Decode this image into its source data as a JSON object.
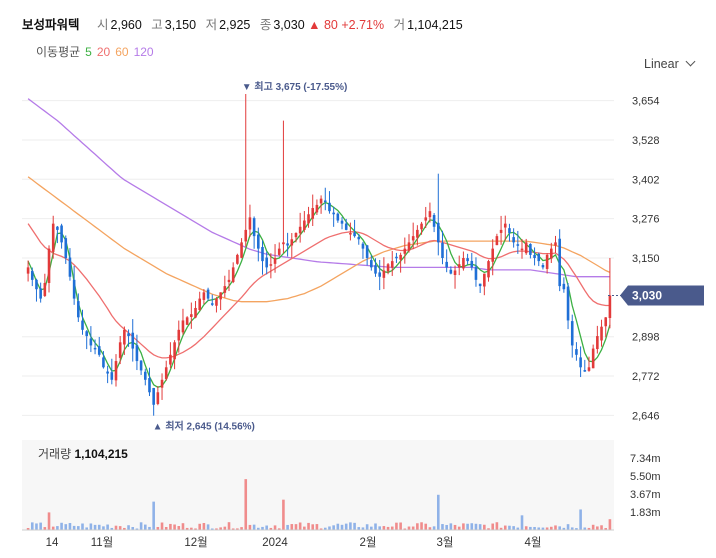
{
  "header": {
    "name": "보성파워텍",
    "open_label": "시",
    "open": "2,960",
    "high_label": "고",
    "high": "3,150",
    "low_label": "저",
    "low": "2,925",
    "close_label": "종",
    "close": "3,030",
    "change": "▲ 80",
    "change_pct": "+2.71%",
    "volume_label": "거",
    "volume": "1,104,215"
  },
  "ma_legend": {
    "label": "이동평균",
    "periods": [
      "5",
      "20",
      "60",
      "120"
    ]
  },
  "scale_selector": {
    "label": "Linear"
  },
  "colors": {
    "up": "#e23a3a",
    "down": "#1f6fd6",
    "ma5": "#3cb043",
    "ma20": "#ef6f6f",
    "ma60": "#f4a460",
    "ma120": "#b57be8",
    "price_tag": "#4a5a8c",
    "volume": "#f08c8c",
    "volume_down": "#8fb2e8"
  },
  "chart_data": {
    "type": "candlestick",
    "y_ticks": [
      "3,654",
      "3,528",
      "3,402",
      "3,276",
      "3,150",
      "2,898",
      "2,772",
      "2,646"
    ],
    "ylim": [
      2580,
      3720
    ],
    "x_ticks": [
      "14",
      "11월",
      "12월",
      "2024",
      "2월",
      "3월",
      "4월"
    ],
    "current_price": "3,030",
    "max_annotation": "▼ 최고 3,675 (-17.55%)",
    "min_annotation": "▲ 최저 2,645 (14.56%)",
    "volume": {
      "label": "거래량",
      "value": "1,104,215",
      "y_ticks": [
        "7.34m",
        "5.50m",
        "3.67m",
        "1.83m"
      ],
      "ylim": [
        0,
        9200000
      ]
    },
    "closes": [
      3120,
      3080,
      3050,
      3020,
      3070,
      3180,
      3260,
      3240,
      3200,
      3150,
      3090,
      3020,
      2960,
      2920,
      2900,
      2870,
      2860,
      2840,
      2800,
      2780,
      2760,
      2820,
      2880,
      2920,
      2900,
      2860,
      2820,
      2790,
      2760,
      2720,
      2680,
      2720,
      2760,
      2800,
      2840,
      2880,
      2920,
      2950,
      2960,
      2970,
      2990,
      3020,
      3040,
      3020,
      3000,
      3020,
      3040,
      3060,
      3080,
      3120,
      3160,
      3200,
      3240,
      3280,
      3220,
      3180,
      3140,
      3120,
      3130,
      3150,
      3180,
      3200,
      3190,
      3210,
      3230,
      3250,
      3270,
      3290,
      3310,
      3320,
      3340,
      3330,
      3300,
      3290,
      3270,
      3260,
      3240,
      3230,
      3220,
      3210,
      3180,
      3150,
      3120,
      3100,
      3090,
      3110,
      3130,
      3140,
      3150,
      3160,
      3180,
      3200,
      3220,
      3240,
      3260,
      3280,
      3300,
      3250,
      3200,
      3150,
      3120,
      3100,
      3110,
      3130,
      3150,
      3140,
      3120,
      3080,
      3060,
      3100,
      3140,
      3180,
      3220,
      3240,
      3260,
      3230,
      3200,
      3190,
      3180,
      3200,
      3160,
      3150,
      3140,
      3120,
      3160,
      3180,
      3200,
      3060,
      3050,
      2950,
      2870,
      2840,
      2800,
      2790,
      2800,
      2860,
      2900,
      2930,
      2960,
      3030
    ],
    "ma5": [
      3140,
      3110,
      3075,
      3048,
      3052,
      3104,
      3165,
      3228,
      3230,
      3206,
      3148,
      3074,
      3006,
      2960,
      2930,
      2898,
      2878,
      2862,
      2840,
      2812,
      2788,
      2790,
      2820,
      2856,
      2876,
      2880,
      2872,
      2846,
      2806,
      2770,
      2744,
      2736,
      2740,
      2760,
      2792,
      2828,
      2868,
      2902,
      2928,
      2948,
      2962,
      2980,
      3000,
      3014,
      3016,
      3020,
      3030,
      3044,
      3060,
      3080,
      3108,
      3140,
      3180,
      3222,
      3236,
      3232,
      3208,
      3172,
      3154,
      3146,
      3150,
      3164,
      3178,
      3196,
      3206,
      3224,
      3242,
      3262,
      3282,
      3302,
      3318,
      3328,
      3322,
      3312,
      3302,
      3286,
      3266,
      3250,
      3236,
      3224,
      3208,
      3186,
      3160,
      3136,
      3116,
      3106,
      3104,
      3110,
      3124,
      3140,
      3156,
      3174,
      3192,
      3212,
      3232,
      3252,
      3272,
      3270,
      3256,
      3232,
      3204,
      3164,
      3136,
      3122,
      3122,
      3128,
      3130,
      3126,
      3112,
      3104,
      3108,
      3124,
      3152,
      3180,
      3210,
      3230,
      3232,
      3222,
      3206,
      3194,
      3182,
      3166,
      3156,
      3142,
      3144,
      3150,
      3160,
      3130,
      3112,
      3062,
      2998,
      2950,
      2898,
      2846,
      2820,
      2818,
      2832,
      2856,
      2890,
      2936
    ],
    "ma20": [
      3260,
      3240,
      3220,
      3200,
      3185,
      3175,
      3165,
      3160,
      3155,
      3148,
      3140,
      3128,
      3114,
      3098,
      3082,
      3064,
      3046,
      3028,
      3008,
      2988,
      2966,
      2948,
      2934,
      2922,
      2910,
      2898,
      2886,
      2874,
      2862,
      2850,
      2840,
      2834,
      2830,
      2830,
      2832,
      2836,
      2842,
      2848,
      2856,
      2864,
      2874,
      2886,
      2898,
      2912,
      2926,
      2940,
      2954,
      2968,
      2982,
      2996,
      3010,
      3024,
      3040,
      3056,
      3070,
      3082,
      3092,
      3100,
      3108,
      3116,
      3124,
      3132,
      3140,
      3148,
      3156,
      3164,
      3172,
      3180,
      3188,
      3196,
      3204,
      3212,
      3218,
      3222,
      3226,
      3230,
      3232,
      3234,
      3234,
      3232,
      3228,
      3222,
      3214,
      3206,
      3198,
      3190,
      3184,
      3180,
      3176,
      3174,
      3174,
      3176,
      3180,
      3186,
      3192,
      3198,
      3204,
      3206,
      3204,
      3200,
      3196,
      3192,
      3188,
      3184,
      3180,
      3176,
      3172,
      3166,
      3158,
      3152,
      3148,
      3148,
      3150,
      3154,
      3160,
      3166,
      3170,
      3172,
      3172,
      3172,
      3170,
      3168,
      3166,
      3164,
      3164,
      3164,
      3166,
      3156,
      3146,
      3130,
      3110,
      3090,
      3068,
      3046,
      3026,
      3012,
      3004,
      3000,
      2998,
      2998
    ],
    "ma60": [
      3410,
      3400,
      3390,
      3380,
      3370,
      3360,
      3350,
      3340,
      3330,
      3320,
      3310,
      3300,
      3290,
      3280,
      3270,
      3260,
      3250,
      3240,
      3230,
      3220,
      3210,
      3200,
      3190,
      3180,
      3172,
      3164,
      3156,
      3148,
      3140,
      3132,
      3124,
      3116,
      3108,
      3100,
      3094,
      3088,
      3082,
      3076,
      3070,
      3064,
      3058,
      3052,
      3046,
      3040,
      3034,
      3030,
      3026,
      3022,
      3018,
      3014,
      3012,
      3010,
      3010,
      3010,
      3010,
      3010,
      3010,
      3010,
      3012,
      3014,
      3016,
      3018,
      3020,
      3024,
      3028,
      3032,
      3036,
      3042,
      3048,
      3054,
      3060,
      3068,
      3076,
      3084,
      3092,
      3100,
      3108,
      3116,
      3124,
      3132,
      3140,
      3146,
      3152,
      3158,
      3164,
      3170,
      3174,
      3178,
      3182,
      3186,
      3190,
      3192,
      3194,
      3196,
      3198,
      3200,
      3202,
      3204,
      3204,
      3204,
      3204,
      3204,
      3204,
      3204,
      3204,
      3204,
      3204,
      3204,
      3204,
      3204,
      3204,
      3204,
      3204,
      3204,
      3204,
      3204,
      3204,
      3204,
      3204,
      3204,
      3202,
      3200,
      3198,
      3196,
      3194,
      3192,
      3190,
      3186,
      3182,
      3176,
      3170,
      3164,
      3158,
      3150,
      3142,
      3134,
      3126,
      3118,
      3110,
      3104
    ],
    "ma120": [
      3660,
      3650,
      3640,
      3630,
      3620,
      3610,
      3600,
      3590,
      3578,
      3566,
      3554,
      3542,
      3530,
      3518,
      3506,
      3494,
      3482,
      3470,
      3458,
      3446,
      3434,
      3422,
      3410,
      3400,
      3392,
      3384,
      3376,
      3368,
      3360,
      3352,
      3344,
      3336,
      3328,
      3320,
      3312,
      3304,
      3296,
      3288,
      3280,
      3272,
      3264,
      3256,
      3248,
      3240,
      3232,
      3226,
      3220,
      3214,
      3208,
      3202,
      3196,
      3190,
      3184,
      3178,
      3174,
      3170,
      3166,
      3162,
      3160,
      3158,
      3156,
      3154,
      3152,
      3150,
      3148,
      3146,
      3144,
      3142,
      3140,
      3138,
      3137,
      3136,
      3135,
      3134,
      3133,
      3132,
      3131,
      3130,
      3129,
      3128,
      3127,
      3126,
      3125,
      3124,
      3123,
      3122,
      3121,
      3120,
      3120,
      3120,
      3120,
      3120,
      3120,
      3120,
      3120,
      3120,
      3120,
      3120,
      3120,
      3120,
      3120,
      3120,
      3120,
      3120,
      3120,
      3120,
      3120,
      3118,
      3116,
      3114,
      3112,
      3112,
      3112,
      3112,
      3112,
      3112,
      3112,
      3112,
      3112,
      3112,
      3112,
      3110,
      3108,
      3106,
      3104,
      3102,
      3100,
      3098,
      3096,
      3094,
      3092,
      3090,
      3090,
      3090,
      3090,
      3090,
      3090,
      3090,
      3090,
      3090
    ]
  }
}
